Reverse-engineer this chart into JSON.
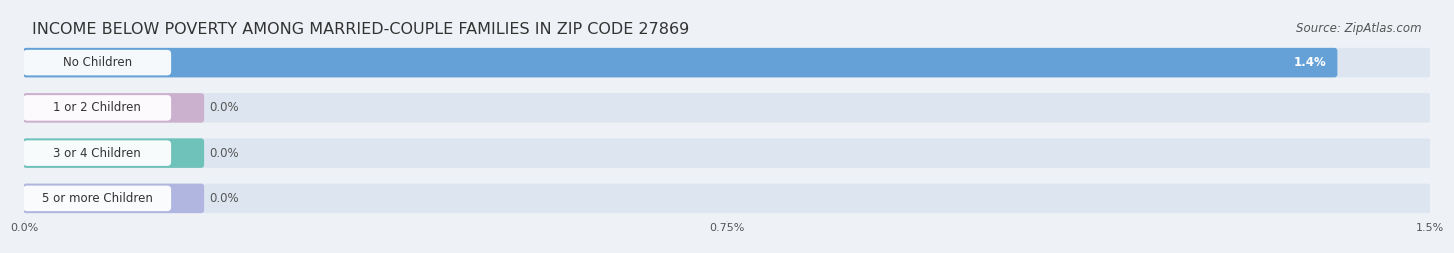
{
  "title": "INCOME BELOW POVERTY AMONG MARRIED-COUPLE FAMILIES IN ZIP CODE 27869",
  "source": "Source: ZipAtlas.com",
  "categories": [
    "No Children",
    "1 or 2 Children",
    "3 or 4 Children",
    "5 or more Children"
  ],
  "values": [
    1.4,
    0.0,
    0.0,
    0.0
  ],
  "bar_colors": [
    "#5b9bd5",
    "#c9a8c9",
    "#5bbcb0",
    "#a8aedd"
  ],
  "xlim_max": 1.5,
  "xticks": [
    0.0,
    0.75,
    1.5
  ],
  "xtick_labels": [
    "0.0%",
    "0.75%",
    "1.5%"
  ],
  "background_color": "#eef2f7",
  "row_bg_color": "#eef2f7",
  "bar_bg_color": "#dde6f0",
  "title_fontsize": 11.5,
  "source_fontsize": 8.5,
  "label_fontsize": 8.5,
  "value_fontsize": 8.5,
  "grid_color": "#c8d4e0"
}
